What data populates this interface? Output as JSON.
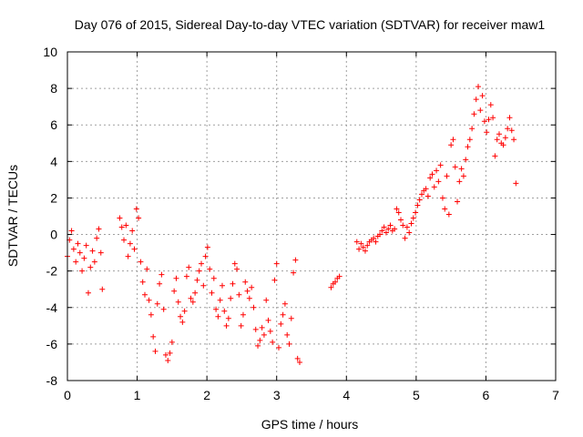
{
  "chart_data": {
    "type": "scatter",
    "title": "Day 076 of 2015, Sidereal Day-to-day VTEC variation (SDTVAR) for receiver maw1",
    "xlabel": "GPS time / hours",
    "ylabel": "SDTVAR / TECUs",
    "xlim": [
      0,
      7
    ],
    "ylim": [
      -8,
      10
    ],
    "xticks": [
      "0",
      "1",
      "2",
      "3",
      "4",
      "5",
      "6",
      "7"
    ],
    "yticks": [
      "-8",
      "-6",
      "-4",
      "-2",
      "0",
      "2",
      "4",
      "6",
      "8",
      "10"
    ],
    "grid": true,
    "marker": "+",
    "color": "#ff0000",
    "series": [
      {
        "name": "SDTVAR",
        "x": [
          0.0,
          0.03,
          0.06,
          0.09,
          0.12,
          0.15,
          0.18,
          0.21,
          0.24,
          0.27,
          0.3,
          0.33,
          0.36,
          0.39,
          0.42,
          0.45,
          0.48,
          0.5,
          0.75,
          0.78,
          0.81,
          0.84,
          0.87,
          0.9,
          0.93,
          0.96,
          0.99,
          1.02,
          1.05,
          1.08,
          1.11,
          1.14,
          1.17,
          1.2,
          1.23,
          1.26,
          1.29,
          1.32,
          1.35,
          1.38,
          1.41,
          1.44,
          1.47,
          1.5,
          1.53,
          1.56,
          1.59,
          1.62,
          1.65,
          1.68,
          1.71,
          1.74,
          1.77,
          1.8,
          1.83,
          1.86,
          1.89,
          1.92,
          1.95,
          1.98,
          2.01,
          2.04,
          2.07,
          2.1,
          2.13,
          2.16,
          2.19,
          2.22,
          2.25,
          2.28,
          2.31,
          2.34,
          2.37,
          2.4,
          2.43,
          2.46,
          2.49,
          2.52,
          2.55,
          2.58,
          2.61,
          2.64,
          2.67,
          2.7,
          2.73,
          2.76,
          2.79,
          2.82,
          2.85,
          2.88,
          2.91,
          2.94,
          2.97,
          3.0,
          3.03,
          3.06,
          3.09,
          3.12,
          3.15,
          3.18,
          3.21,
          3.24,
          3.27,
          3.3,
          3.33,
          3.78,
          3.81,
          3.84,
          3.87,
          3.9,
          4.15,
          4.18,
          4.21,
          4.24,
          4.27,
          4.3,
          4.33,
          4.36,
          4.39,
          4.42,
          4.45,
          4.48,
          4.51,
          4.54,
          4.57,
          4.6,
          4.63,
          4.66,
          4.69,
          4.72,
          4.75,
          4.78,
          4.81,
          4.84,
          4.87,
          4.9,
          4.93,
          4.96,
          4.99,
          5.02,
          5.05,
          5.08,
          5.11,
          5.14,
          5.17,
          5.2,
          5.23,
          5.26,
          5.29,
          5.32,
          5.35,
          5.38,
          5.41,
          5.44,
          5.47,
          5.5,
          5.53,
          5.56,
          5.59,
          5.62,
          5.65,
          5.68,
          5.71,
          5.74,
          5.77,
          5.8,
          5.83,
          5.86,
          5.89,
          5.92,
          5.95,
          5.98,
          6.01,
          6.04,
          6.07,
          6.1,
          6.13,
          6.16,
          6.19,
          6.22,
          6.25,
          6.28,
          6.31,
          6.34,
          6.37,
          6.4,
          6.43
        ],
        "y": [
          -1.2,
          -0.3,
          0.2,
          -0.8,
          -1.5,
          -0.5,
          -1.0,
          -2.0,
          -1.3,
          -0.6,
          -3.2,
          -1.8,
          -0.9,
          -1.5,
          -0.2,
          0.3,
          -1.0,
          -3.0,
          0.9,
          0.4,
          -0.3,
          0.5,
          -1.2,
          -0.5,
          0.2,
          -0.8,
          1.4,
          0.9,
          -1.5,
          -2.6,
          -3.3,
          -1.9,
          -3.6,
          -4.4,
          -5.6,
          -6.4,
          -3.8,
          -2.7,
          -2.2,
          -4.1,
          -6.6,
          -6.9,
          -6.5,
          -5.9,
          -3.1,
          -2.4,
          -3.7,
          -4.5,
          -4.8,
          -4.2,
          -2.3,
          -1.8,
          -3.5,
          -3.7,
          -3.2,
          -2.5,
          -2.0,
          -1.6,
          -2.8,
          -1.2,
          -0.7,
          -1.9,
          -3.2,
          -2.4,
          -4.1,
          -4.5,
          -3.6,
          -2.8,
          -4.2,
          -5.0,
          -4.6,
          -3.5,
          -2.7,
          -1.6,
          -1.9,
          -3.3,
          -5.0,
          -4.4,
          -2.6,
          -3.1,
          -3.5,
          -2.9,
          -4.0,
          -5.2,
          -6.1,
          -5.8,
          -5.1,
          -5.5,
          -3.6,
          -4.7,
          -5.3,
          -5.9,
          -2.5,
          -1.6,
          -6.2,
          -4.9,
          -4.4,
          -3.8,
          -5.5,
          -6.0,
          -4.6,
          -2.1,
          -1.4,
          -6.8,
          -7.0,
          -2.9,
          -2.7,
          -2.6,
          -2.4,
          -2.3,
          -0.4,
          -0.8,
          -0.5,
          -0.7,
          -0.9,
          -0.6,
          -0.4,
          -0.3,
          -0.2,
          -0.4,
          -0.1,
          0.0,
          0.2,
          0.4,
          0.1,
          0.3,
          0.5,
          0.2,
          0.3,
          1.4,
          1.2,
          0.8,
          0.5,
          -0.2,
          0.4,
          0.1,
          0.6,
          0.9,
          1.2,
          1.6,
          1.9,
          2.2,
          2.4,
          2.5,
          2.1,
          3.1,
          3.3,
          2.6,
          3.5,
          2.9,
          3.8,
          2.0,
          1.4,
          3.2,
          1.1,
          4.9,
          5.2,
          3.7,
          1.8,
          2.9,
          3.6,
          3.2,
          4.1,
          4.8,
          5.2,
          5.8,
          6.6,
          7.4,
          8.1,
          6.8,
          7.6,
          6.2,
          5.6,
          6.3,
          7.1,
          6.4,
          4.3,
          5.2,
          5.5,
          5.0,
          4.9,
          5.3,
          5.8,
          6.4,
          5.7,
          5.2,
          2.8
        ]
      }
    ]
  }
}
